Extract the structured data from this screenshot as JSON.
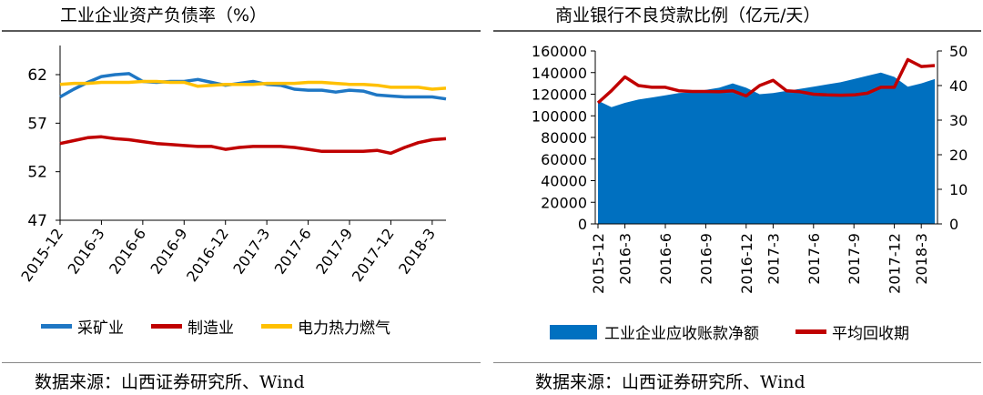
{
  "left_panel": {
    "title": "工业企业资产负债率（%）",
    "source": "数据来源：山西证券研究所、Wind",
    "legend": [
      {
        "label": "采矿业",
        "color": "#1f77c4"
      },
      {
        "label": "制造业",
        "color": "#c00000"
      },
      {
        "label": "电力热力燃气",
        "color": "#ffc000"
      }
    ]
  },
  "right_panel": {
    "title": "商业银行不良贷款比例（亿元/天）",
    "source": "数据来源：山西证券研究所、Wind",
    "legend": [
      {
        "label": "工业企业应收账款净额",
        "color": "#0070c0"
      },
      {
        "label": "平均回收期",
        "color": "#c00000"
      }
    ]
  },
  "chart_data": [
    {
      "type": "line",
      "title": "工业企业资产负债率（%）",
      "xlabel": "",
      "ylabel": "",
      "ylim": [
        47,
        65
      ],
      "yticks": [
        47,
        52,
        57,
        62
      ],
      "x": [
        "2015-12",
        "2016-1",
        "2016-2",
        "2016-3",
        "2016-4",
        "2016-5",
        "2016-6",
        "2016-7",
        "2016-8",
        "2016-9",
        "2016-10",
        "2016-11",
        "2016-12",
        "2017-1",
        "2017-2",
        "2017-3",
        "2017-4",
        "2017-5",
        "2017-6",
        "2017-7",
        "2017-8",
        "2017-9",
        "2017-10",
        "2017-11",
        "2017-12",
        "2018-1",
        "2018-2",
        "2018-3",
        "2018-4"
      ],
      "xticklabels": [
        "2015-12",
        "2016-3",
        "2016-6",
        "2016-9",
        "2016-12",
        "2017-3",
        "2017-6",
        "2017-9",
        "2017-12",
        "2018-3"
      ],
      "series": [
        {
          "name": "采矿业",
          "color": "#1f77c4",
          "values": [
            59.7,
            60.5,
            61.2,
            61.8,
            62.0,
            62.1,
            61.3,
            61.2,
            61.3,
            61.3,
            61.5,
            61.2,
            60.9,
            61.1,
            61.3,
            61.0,
            60.9,
            60.5,
            60.4,
            60.4,
            60.2,
            60.4,
            60.3,
            59.9,
            59.8,
            59.7,
            59.7,
            59.7,
            59.5
          ]
        },
        {
          "name": "制造业",
          "color": "#c00000",
          "values": [
            54.9,
            55.2,
            55.5,
            55.6,
            55.4,
            55.3,
            55.1,
            54.9,
            54.8,
            54.7,
            54.6,
            54.6,
            54.3,
            54.5,
            54.6,
            54.6,
            54.6,
            54.5,
            54.3,
            54.1,
            54.1,
            54.1,
            54.1,
            54.2,
            53.9,
            54.5,
            55.0,
            55.3,
            55.4
          ]
        },
        {
          "name": "电力热力燃气",
          "color": "#ffc000",
          "values": [
            61.0,
            61.1,
            61.1,
            61.2,
            61.2,
            61.2,
            61.3,
            61.3,
            61.2,
            61.2,
            60.8,
            60.9,
            61.0,
            61.0,
            61.0,
            61.1,
            61.1,
            61.1,
            61.2,
            61.2,
            61.1,
            61.0,
            61.0,
            60.9,
            60.7,
            60.7,
            60.7,
            60.5,
            60.6
          ]
        }
      ]
    },
    {
      "type": "area",
      "title": "商业银行不良贷款比例（亿元/天）",
      "xlabel": "",
      "ylabel": "",
      "ylim": [
        0,
        160000
      ],
      "yticks": [
        0,
        20000,
        40000,
        60000,
        80000,
        100000,
        120000,
        140000,
        160000
      ],
      "y2lim": [
        0,
        50
      ],
      "y2ticks": [
        0,
        10,
        20,
        30,
        40,
        50
      ],
      "x": [
        "2015-12",
        "2016-2",
        "2016-3",
        "2016-4",
        "2016-5",
        "2016-6",
        "2016-7",
        "2016-8",
        "2016-9",
        "2016-10",
        "2016-11",
        "2016-12",
        "2017-2",
        "2017-3",
        "2017-4",
        "2017-5",
        "2017-6",
        "2017-7",
        "2017-8",
        "2017-9",
        "2017-10",
        "2017-11",
        "2017-12",
        "2018-2",
        "2018-3",
        "2018-4"
      ],
      "xticklabels": [
        "2015-12",
        "2016-3",
        "2016-6",
        "2016-9",
        "2016-12",
        "2017-3",
        "2017-6",
        "2017-9",
        "2017-12",
        "2018-3"
      ],
      "series": [
        {
          "name": "工业企业应收账款净额",
          "color": "#0070c0",
          "axis": "left",
          "kind": "area",
          "values": [
            114000,
            108000,
            112000,
            115000,
            117000,
            119000,
            121000,
            122000,
            124000,
            126000,
            130000,
            126000,
            120000,
            121000,
            123000,
            125000,
            127000,
            129000,
            131000,
            134000,
            137000,
            140000,
            136000,
            127000,
            130000,
            134000
          ]
        },
        {
          "name": "平均回收期",
          "color": "#c00000",
          "axis": "right",
          "kind": "line",
          "values": [
            35,
            38.5,
            42.5,
            40,
            39.5,
            39.5,
            38.5,
            38.3,
            38.3,
            38.2,
            38.5,
            37,
            40,
            41.5,
            38.5,
            38.2,
            37.5,
            37.3,
            37.2,
            37.3,
            37.8,
            39.5,
            39.5,
            47.5,
            45.5,
            45.8
          ]
        }
      ]
    }
  ]
}
